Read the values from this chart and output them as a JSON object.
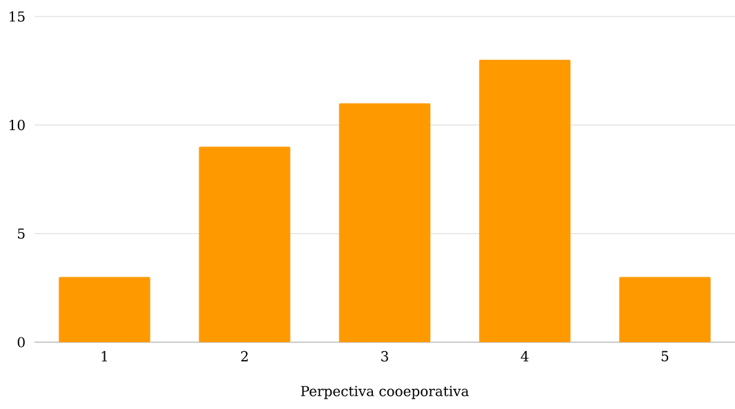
{
  "chart_data": {
    "type": "bar",
    "xlabel": "Perpectiva cooeporativa",
    "categories": [
      "1",
      "2",
      "3",
      "4",
      "5"
    ],
    "values": [
      3,
      9,
      11,
      13,
      3
    ],
    "color": "#ff9900",
    "ylim": [
      0,
      15
    ],
    "yticks": [
      0,
      5,
      10,
      15
    ],
    "grid": "y"
  }
}
